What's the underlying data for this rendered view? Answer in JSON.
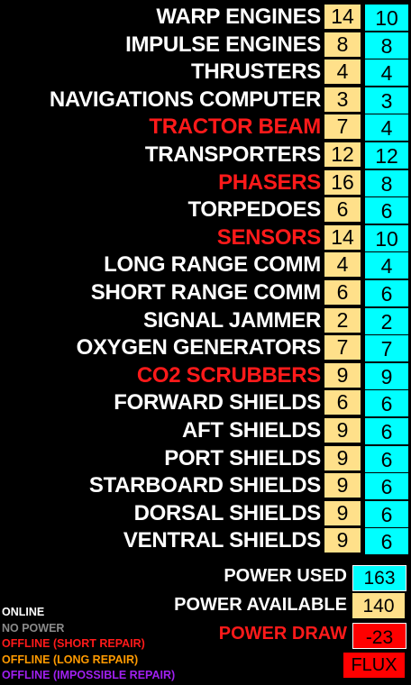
{
  "colors": {
    "online": "#ffffff",
    "offline_short": "#ff1a1a",
    "required_bg": "#ffe08a",
    "allocated_bg": "#00ffff",
    "draw_bg": "#ff0000"
  },
  "systems": [
    {
      "name": "WARP ENGINES",
      "required": "14",
      "allocated": "10",
      "status": "online"
    },
    {
      "name": "IMPULSE ENGINES",
      "required": "8",
      "allocated": "8",
      "status": "online"
    },
    {
      "name": "THRUSTERS",
      "required": "4",
      "allocated": "4",
      "status": "online"
    },
    {
      "name": "NAVIGATIONS COMPUTER",
      "required": "3",
      "allocated": "3",
      "status": "online"
    },
    {
      "name": "TRACTOR BEAM",
      "required": "7",
      "allocated": "4",
      "status": "offline_short"
    },
    {
      "name": "TRANSPORTERS",
      "required": "12",
      "allocated": "12",
      "status": "online"
    },
    {
      "name": "PHASERS",
      "required": "16",
      "allocated": "8",
      "status": "offline_short"
    },
    {
      "name": "TORPEDOES",
      "required": "6",
      "allocated": "6",
      "status": "online"
    },
    {
      "name": "SENSORS",
      "required": "14",
      "allocated": "10",
      "status": "offline_short"
    },
    {
      "name": "LONG RANGE COMM",
      "required": "4",
      "allocated": "4",
      "status": "online"
    },
    {
      "name": "SHORT RANGE COMM",
      "required": "6",
      "allocated": "6",
      "status": "online"
    },
    {
      "name": "SIGNAL JAMMER",
      "required": "2",
      "allocated": "2",
      "status": "online"
    },
    {
      "name": "OXYGEN GENERATORS",
      "required": "7",
      "allocated": "7",
      "status": "online"
    },
    {
      "name": "CO2 SCRUBBERS",
      "required": "9",
      "allocated": "9",
      "status": "offline_short"
    },
    {
      "name": "FORWARD SHIELDS",
      "required": "6",
      "allocated": "6",
      "status": "online"
    },
    {
      "name": "AFT SHIELDS",
      "required": "9",
      "allocated": "6",
      "status": "online"
    },
    {
      "name": "PORT SHIELDS",
      "required": "9",
      "allocated": "6",
      "status": "online"
    },
    {
      "name": "STARBOARD SHIELDS",
      "required": "9",
      "allocated": "6",
      "status": "online"
    },
    {
      "name": "DORSAL SHIELDS",
      "required": "9",
      "allocated": "6",
      "status": "online"
    },
    {
      "name": "VENTRAL SHIELDS",
      "required": "9",
      "allocated": "6",
      "status": "online"
    }
  ],
  "summary": {
    "power_used_label": "POWER USED",
    "power_used": "163",
    "power_available_label": "POWER AVAILABLE",
    "power_available": "140",
    "power_draw_label": "POWER DRAW",
    "power_draw": "-23",
    "flux_label": "FLUX"
  },
  "legend": [
    {
      "label": "ONLINE",
      "color": "#ffffff"
    },
    {
      "label": "NO POWER",
      "color": "#8a8a8a"
    },
    {
      "label": "OFFLINE (SHORT REPAIR)",
      "color": "#ff1a1a"
    },
    {
      "label": "OFFLINE (LONG REPAIR)",
      "color": "#ff9a00"
    },
    {
      "label": "OFFLINE (IMPOSSIBLE REPAIR)",
      "color": "#a020f0"
    }
  ]
}
